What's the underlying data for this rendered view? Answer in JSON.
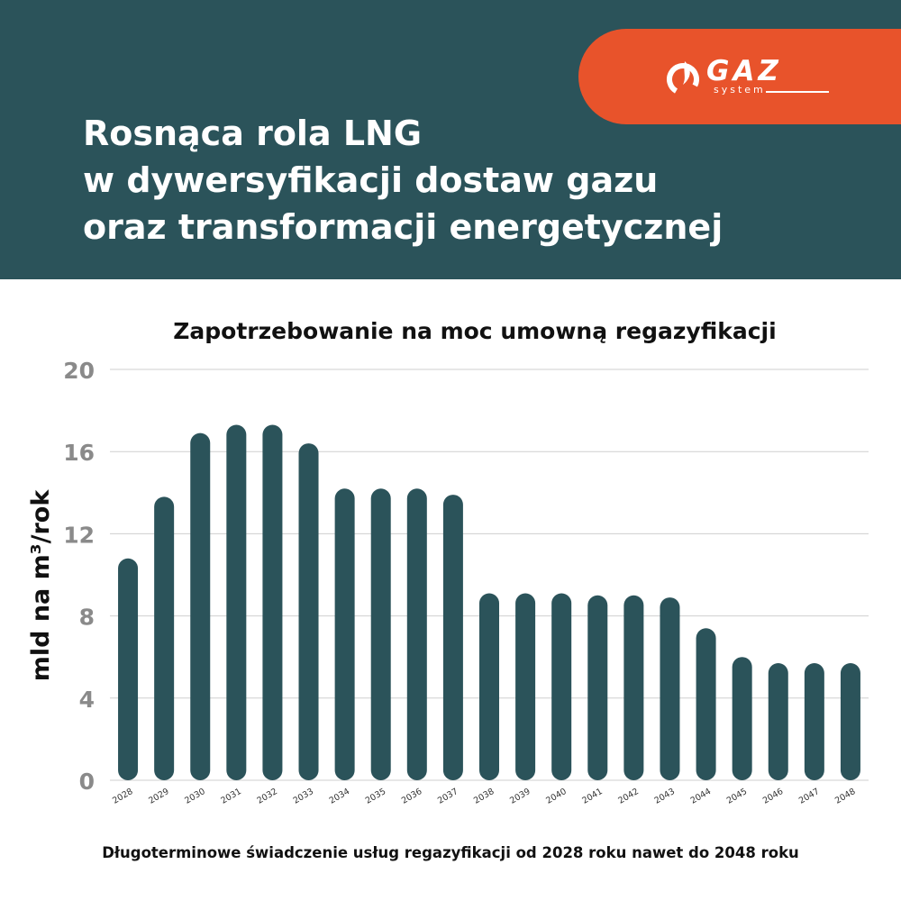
{
  "header": {
    "title_lines": [
      "Rosnąca rola LNG",
      "w dywersyfikacji dostaw gazu",
      "oraz transformacji energetycznej"
    ],
    "logo": {
      "name": "GAZ",
      "sub": "system"
    }
  },
  "colors": {
    "header_bg": "#2b535a",
    "accent": "#e8532b",
    "bar": "#2b535a",
    "grid": "#cfcfcf",
    "tick_text": "#8a8a8a"
  },
  "chart_data": {
    "type": "bar",
    "title": "Zapotrzebowanie na moc umowną regazyfikacji",
    "ylabel": "mld na m³/rok",
    "xlabel": "",
    "ylim": [
      0,
      20
    ],
    "yticks": [
      0,
      4,
      8,
      12,
      16,
      20
    ],
    "grid": true,
    "categories": [
      "2028",
      "2029",
      "2030",
      "2031",
      "2032",
      "2033",
      "2034",
      "2035",
      "2036",
      "2037",
      "2038",
      "2039",
      "2040",
      "2041",
      "2042",
      "2043",
      "2044",
      "2045",
      "2046",
      "2047",
      "2048"
    ],
    "values": [
      10.8,
      13.8,
      16.9,
      17.3,
      17.3,
      16.4,
      14.2,
      14.2,
      14.2,
      13.9,
      9.1,
      9.1,
      9.1,
      9.0,
      9.0,
      8.9,
      7.4,
      6.0,
      5.7,
      5.7,
      5.7
    ]
  },
  "footer": {
    "note": "Długoterminowe świadczenie usług regazyfikacji od 2028 roku nawet do 2048 roku"
  }
}
